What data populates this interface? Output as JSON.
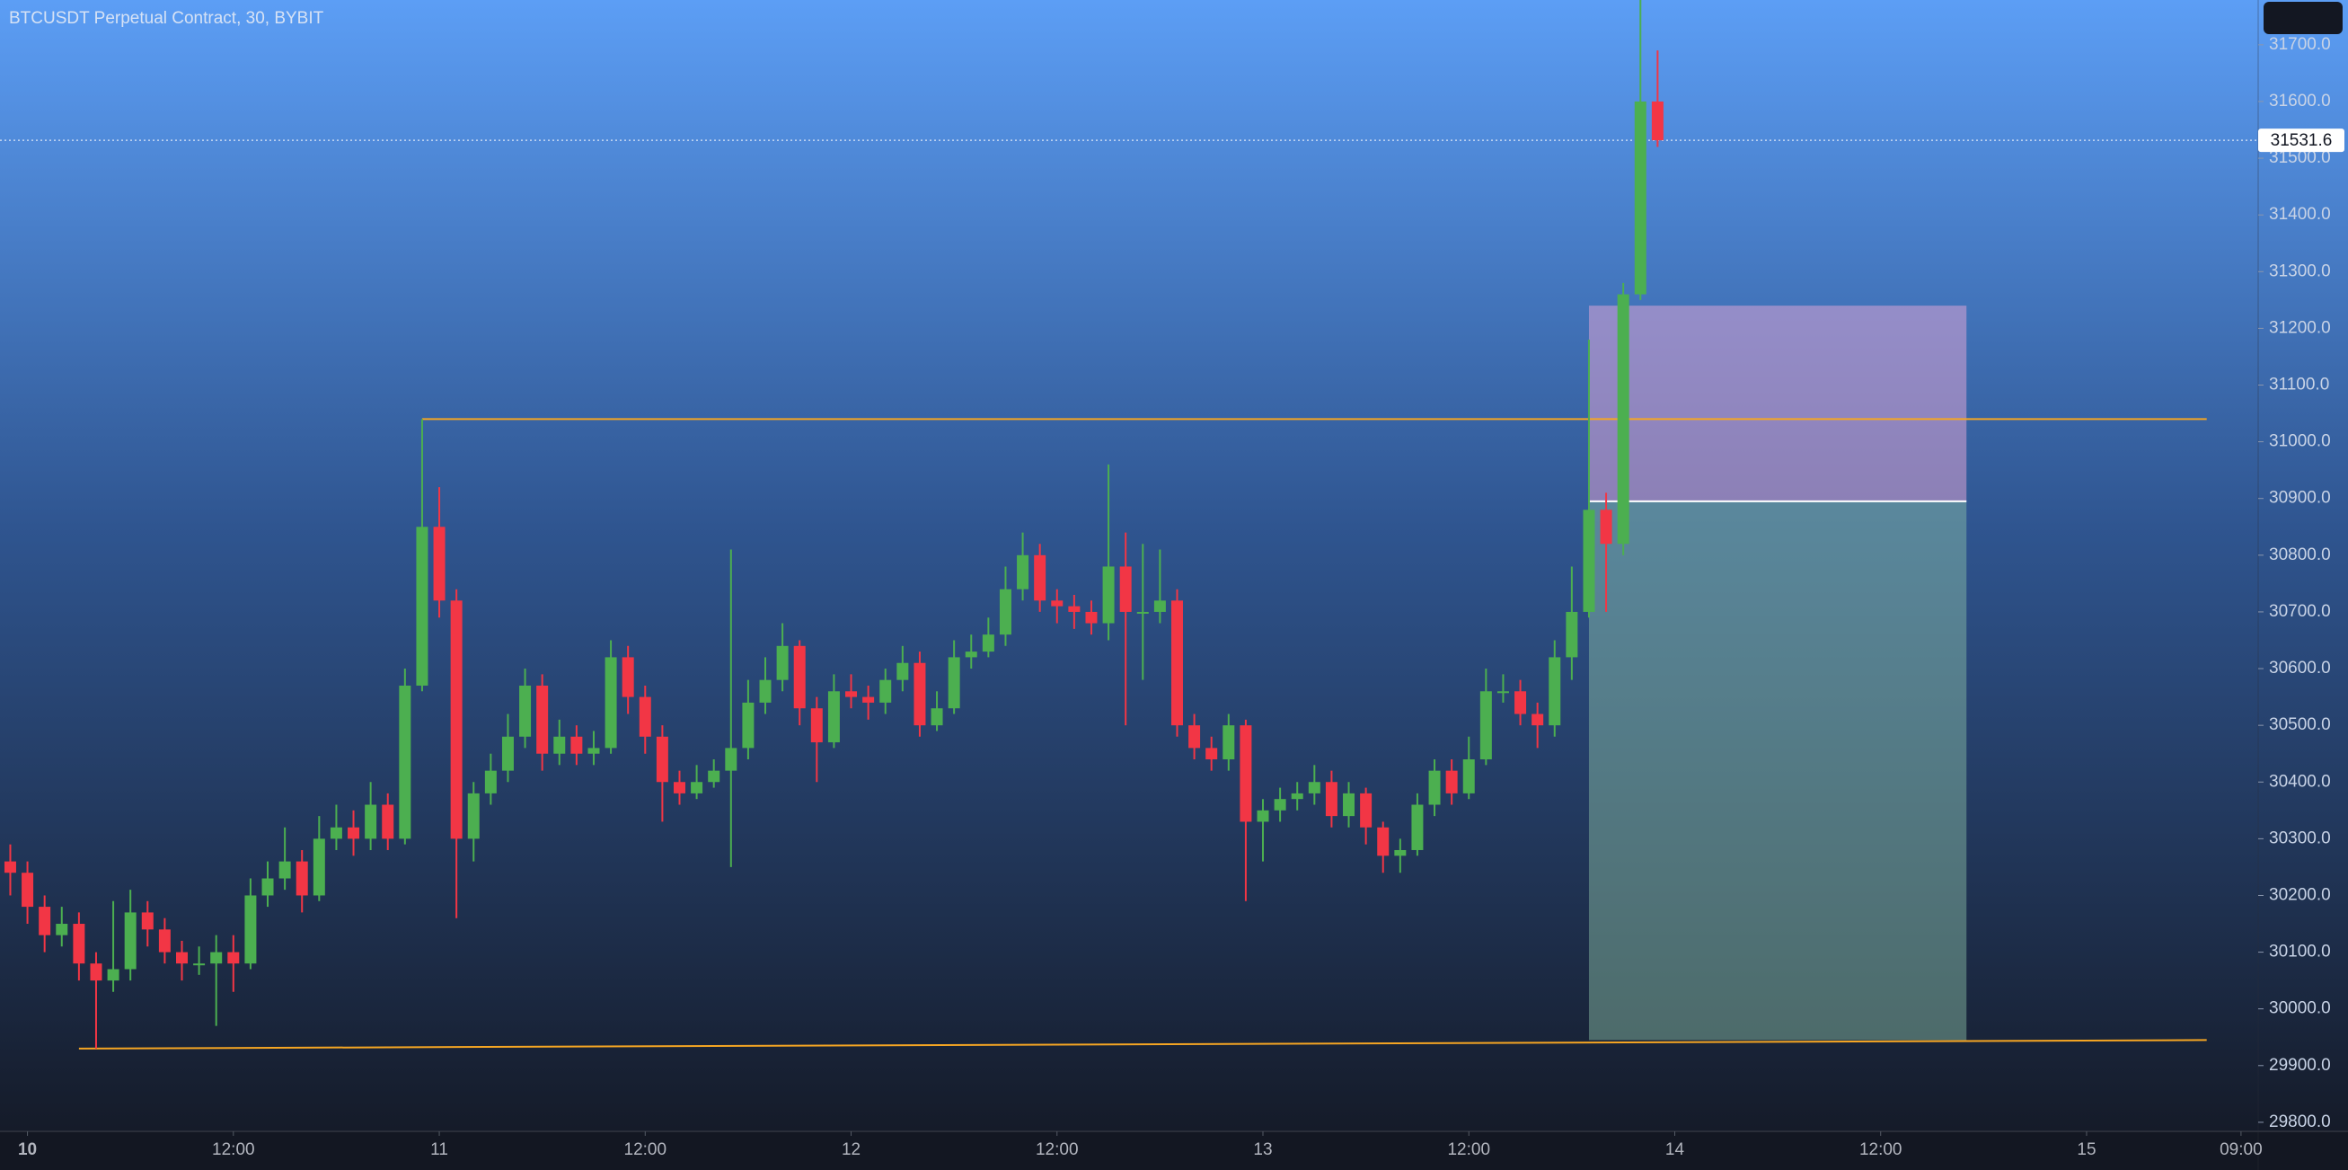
{
  "chart_data": {
    "type": "candlestick",
    "title": "BTCUSDT Perpetual Contract, 30, BYBIT",
    "x": [
      -1,
      0,
      1,
      2,
      3,
      4,
      5,
      6,
      7,
      8,
      9,
      10,
      11,
      12,
      13,
      14,
      15,
      16,
      17,
      18,
      19,
      20,
      21,
      22,
      23,
      24,
      25,
      26,
      27,
      28,
      29,
      30,
      31,
      32,
      33,
      34,
      35,
      36,
      37,
      38,
      39,
      40,
      41,
      42,
      43,
      44,
      45,
      46,
      47,
      48,
      49,
      50,
      51,
      52,
      53,
      54,
      55,
      56,
      57,
      58,
      59,
      60,
      61,
      62,
      63,
      64,
      65,
      66,
      67,
      68,
      69,
      70,
      71,
      72,
      73,
      74,
      75,
      76,
      77,
      78,
      79,
      80,
      81,
      82,
      83,
      84,
      85,
      86,
      87,
      88,
      89,
      90,
      91,
      92,
      93,
      94,
      95
    ],
    "open": [
      30260,
      30240,
      30180,
      30130,
      30150,
      30080,
      30050,
      30070,
      30170,
      30140,
      30100,
      30080,
      30080,
      30100,
      30080,
      30200,
      30230,
      30260,
      30200,
      30300,
      30320,
      30300,
      30360,
      30300,
      30570,
      30850,
      30720,
      30300,
      30380,
      30420,
      30480,
      30570,
      30450,
      30480,
      30450,
      30460,
      30620,
      30550,
      30480,
      30400,
      30380,
      30400,
      30420,
      30460,
      30540,
      30580,
      30640,
      30530,
      30470,
      30560,
      30550,
      30540,
      30580,
      30610,
      30500,
      30530,
      30620,
      30630,
      30660,
      30740,
      30800,
      30720,
      30710,
      30700,
      30680,
      30780,
      30700,
      30700,
      30720,
      30500,
      30460,
      30440,
      30500,
      30330,
      30350,
      30370,
      30380,
      30400,
      30340,
      30380,
      30320,
      30270,
      30280,
      30360,
      30420,
      30380,
      30440,
      30560,
      30560,
      30520,
      30500,
      30620,
      30700,
      30880,
      30820,
      31260,
      31600
    ],
    "high": [
      30290,
      30260,
      30200,
      30180,
      30170,
      30100,
      30190,
      30210,
      30190,
      30160,
      30120,
      30110,
      30130,
      30130,
      30230,
      30260,
      30320,
      30280,
      30340,
      30360,
      30350,
      30400,
      30380,
      30600,
      31040,
      30920,
      30740,
      30400,
      30450,
      30520,
      30600,
      30590,
      30510,
      30500,
      30490,
      30650,
      30640,
      30570,
      30500,
      30420,
      30430,
      30440,
      30810,
      30580,
      30620,
      30680,
      30650,
      30550,
      30590,
      30590,
      30570,
      30600,
      30640,
      30630,
      30560,
      30650,
      30660,
      30690,
      30780,
      30840,
      30820,
      30740,
      30730,
      30720,
      30960,
      30840,
      30820,
      30810,
      30740,
      30520,
      30480,
      30520,
      30510,
      30370,
      30390,
      30400,
      30430,
      30420,
      30400,
      30390,
      30330,
      30300,
      30380,
      30440,
      30440,
      30480,
      30600,
      30590,
      30580,
      30540,
      30650,
      30780,
      31180,
      30910,
      31280,
      31780,
      31690
    ],
    "low": [
      30200,
      30150,
      30100,
      30110,
      30050,
      29930,
      30030,
      30050,
      30110,
      30080,
      30050,
      30060,
      29970,
      30030,
      30070,
      30180,
      30210,
      30170,
      30190,
      30280,
      30270,
      30280,
      30280,
      30290,
      30560,
      30690,
      30160,
      30260,
      30360,
      30400,
      30460,
      30420,
      30430,
      30430,
      30430,
      30450,
      30520,
      30450,
      30330,
      30360,
      30370,
      30390,
      30250,
      30440,
      30520,
      30560,
      30500,
      30400,
      30460,
      30530,
      30510,
      30520,
      30560,
      30480,
      30490,
      30520,
      30600,
      30620,
      30640,
      30720,
      30700,
      30680,
      30670,
      30660,
      30650,
      30500,
      30580,
      30680,
      30480,
      30440,
      30420,
      30420,
      30190,
      30260,
      30330,
      30350,
      30360,
      30320,
      30320,
      30290,
      30240,
      30240,
      30270,
      30340,
      30360,
      30370,
      30430,
      30540,
      30500,
      30460,
      30480,
      30580,
      30690,
      30700,
      30800,
      31250,
      31520
    ],
    "close": [
      30240,
      30180,
      30130,
      30150,
      30080,
      30050,
      30070,
      30170,
      30140,
      30100,
      30080,
      30080,
      30100,
      30080,
      30200,
      30230,
      30260,
      30200,
      30300,
      30320,
      30300,
      30360,
      30300,
      30570,
      30850,
      30720,
      30300,
      30380,
      30420,
      30480,
      30570,
      30450,
      30480,
      30450,
      30460,
      30620,
      30550,
      30480,
      30400,
      30380,
      30400,
      30420,
      30460,
      30540,
      30580,
      30640,
      30530,
      30470,
      30560,
      30550,
      30540,
      30580,
      30610,
      30500,
      30530,
      30620,
      30630,
      30660,
      30740,
      30800,
      30720,
      30710,
      30700,
      30680,
      30780,
      30700,
      30700,
      30720,
      30500,
      30460,
      30440,
      30500,
      30330,
      30350,
      30370,
      30380,
      30400,
      30340,
      30380,
      30320,
      30270,
      30280,
      30360,
      30420,
      30380,
      30440,
      30560,
      30560,
      30520,
      30500,
      30620,
      30700,
      30880,
      30820,
      31260,
      31600,
      31531.6
    ],
    "up_color": "#4caf50",
    "down_color": "#f23645",
    "last_price": {
      "value": 31531.6,
      "label": "31531.6"
    },
    "resistance": {
      "x": [
        23,
        127
      ],
      "price": [
        31040,
        31040
      ],
      "color": "#f5a623"
    },
    "support": {
      "x": [
        3,
        127
      ],
      "price": [
        29930,
        29945
      ],
      "color": "#f5a623"
    },
    "position": {
      "x": [
        91,
        113
      ],
      "entry": 30895,
      "stop": 31240,
      "target": 29945
    },
    "xlim": [
      -1.6,
      130
    ],
    "ylim": [
      29784,
      31779
    ],
    "xticks": [
      {
        "value": 0,
        "label": "10"
      },
      {
        "value": 12,
        "label": "12:00"
      },
      {
        "value": 24,
        "label": "11"
      },
      {
        "value": 36,
        "label": "12:00"
      },
      {
        "value": 48,
        "label": "12"
      },
      {
        "value": 60,
        "label": "12:00"
      },
      {
        "value": 72,
        "label": "13"
      },
      {
        "value": 84,
        "label": "12:00"
      },
      {
        "value": 96,
        "label": "14"
      },
      {
        "value": 108,
        "label": "12:00"
      },
      {
        "value": 120,
        "label": "15"
      },
      {
        "value": 129,
        "label": "09:00"
      }
    ],
    "yticks": [
      {
        "value": 29800,
        "label": "29800.0"
      },
      {
        "value": 29900,
        "label": "29900.0"
      },
      {
        "value": 30000,
        "label": "30000.0"
      },
      {
        "value": 30100,
        "label": "30100.0"
      },
      {
        "value": 30200,
        "label": "30200.0"
      },
      {
        "value": 30300,
        "label": "30300.0"
      },
      {
        "value": 30400,
        "label": "30400.0"
      },
      {
        "value": 30500,
        "label": "30500.0"
      },
      {
        "value": 30600,
        "label": "30600.0"
      },
      {
        "value": 30700,
        "label": "30700.0"
      },
      {
        "value": 30800,
        "label": "30800.0"
      },
      {
        "value": 30900,
        "label": "30900.0"
      },
      {
        "value": 31000,
        "label": "31000.0"
      },
      {
        "value": 31100,
        "label": "31100.0"
      },
      {
        "value": 31200,
        "label": "31200.0"
      },
      {
        "value": 31300,
        "label": "31300.0"
      },
      {
        "value": 31400,
        "label": "31400.0"
      },
      {
        "value": 31500,
        "label": "31500.0"
      },
      {
        "value": 31600,
        "label": "31600.0"
      },
      {
        "value": 31700,
        "label": "31700.0"
      }
    ]
  }
}
